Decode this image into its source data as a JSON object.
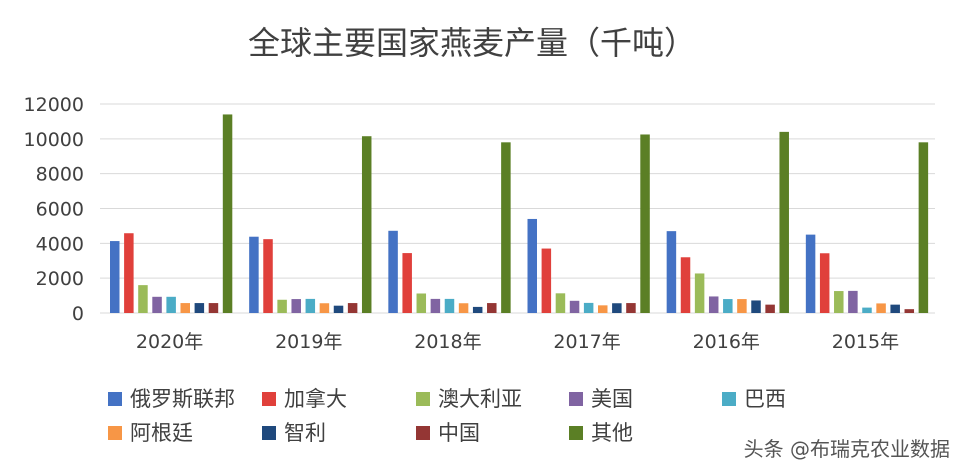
{
  "chart_data": {
    "type": "bar",
    "title": "全球主要国家燕麦产量（千吨）",
    "categories": [
      "2020年",
      "2019年",
      "2018年",
      "2017年",
      "2016年",
      "2015年"
    ],
    "ylim": [
      0,
      12000
    ],
    "yticks": [
      "0",
      "2000",
      "4000",
      "6000",
      "8000",
      "10000",
      "12000"
    ],
    "ytick_values": [
      0,
      2000,
      4000,
      6000,
      8000,
      10000,
      12000
    ],
    "grid": true,
    "legend_position": "bottom",
    "series": [
      {
        "name": "俄罗斯联邦",
        "color": "#4472C4",
        "values": [
          4130,
          4380,
          4720,
          5400,
          4700,
          4500
        ]
      },
      {
        "name": "加拿大",
        "color": "#E0403B",
        "values": [
          4580,
          4240,
          3440,
          3700,
          3200,
          3430
        ]
      },
      {
        "name": "澳大利亚",
        "color": "#9BBB59",
        "values": [
          1600,
          760,
          1120,
          1130,
          2270,
          1260
        ]
      },
      {
        "name": "美国",
        "color": "#8064A2",
        "values": [
          930,
          800,
          810,
          700,
          950,
          1270
        ]
      },
      {
        "name": "巴西",
        "color": "#4BACC6",
        "values": [
          930,
          810,
          810,
          580,
          800,
          310
        ]
      },
      {
        "name": "阿根廷",
        "color": "#F79646",
        "values": [
          570,
          560,
          560,
          440,
          800,
          550
        ]
      },
      {
        "name": "智利",
        "color": "#1F497D",
        "values": [
          570,
          420,
          350,
          560,
          720,
          480
        ]
      },
      {
        "name": "中国",
        "color": "#943634",
        "values": [
          570,
          570,
          570,
          570,
          480,
          220
        ]
      },
      {
        "name": "其他",
        "color": "#5B7F25",
        "values": [
          11400,
          10150,
          9800,
          10250,
          10400,
          9800
        ]
      }
    ]
  },
  "watermark": "头条 @布瑞克农业数据"
}
